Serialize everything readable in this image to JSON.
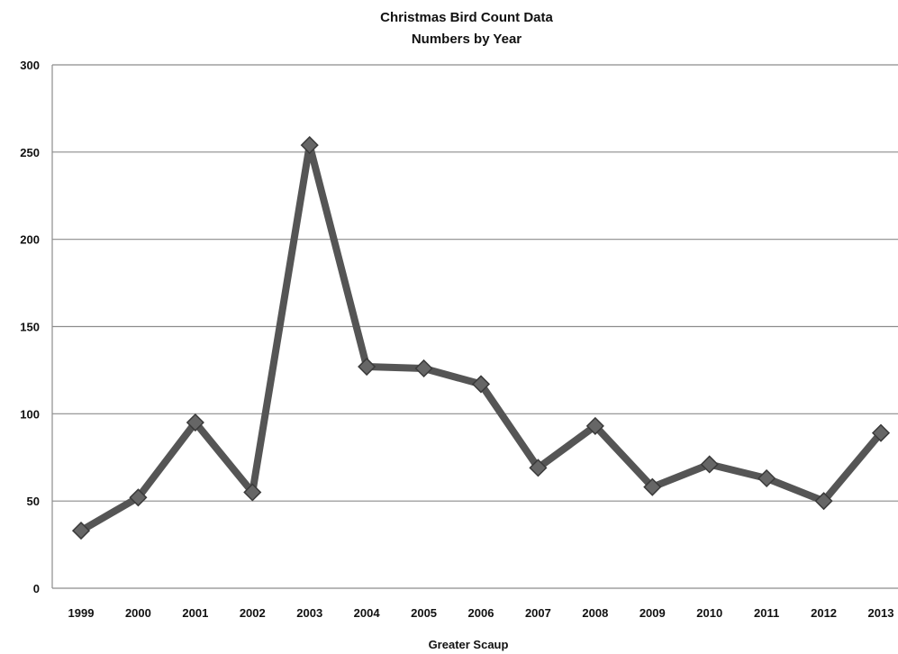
{
  "chart_data": {
    "type": "line",
    "title": "Christmas Bird Count Data",
    "subtitle": "Numbers by Year",
    "xlabel": "Greater Scaup",
    "ylabel": "",
    "categories": [
      "1999",
      "2000",
      "2001",
      "2002",
      "2003",
      "2004",
      "2005",
      "2006",
      "2007",
      "2008",
      "2009",
      "2010",
      "2011",
      "2012",
      "2013"
    ],
    "series": [
      {
        "values": [
          33,
          52,
          95,
          55,
          254,
          127,
          126,
          117,
          69,
          93,
          58,
          71,
          63,
          50,
          89
        ]
      }
    ],
    "ylim": [
      0,
      300
    ],
    "yticks": [
      0,
      50,
      100,
      150,
      200,
      250,
      300
    ],
    "ytick_labels": [
      "0",
      "50",
      "100",
      "150",
      "200",
      "250",
      "300"
    ],
    "grid": "horizontal",
    "legend": "none",
    "colors": {
      "line": "#555555",
      "marker": "#666666",
      "marker_stroke": "#3a3a3a",
      "gridline": "#8c8c8c",
      "axis": "#8c8c8c"
    }
  }
}
